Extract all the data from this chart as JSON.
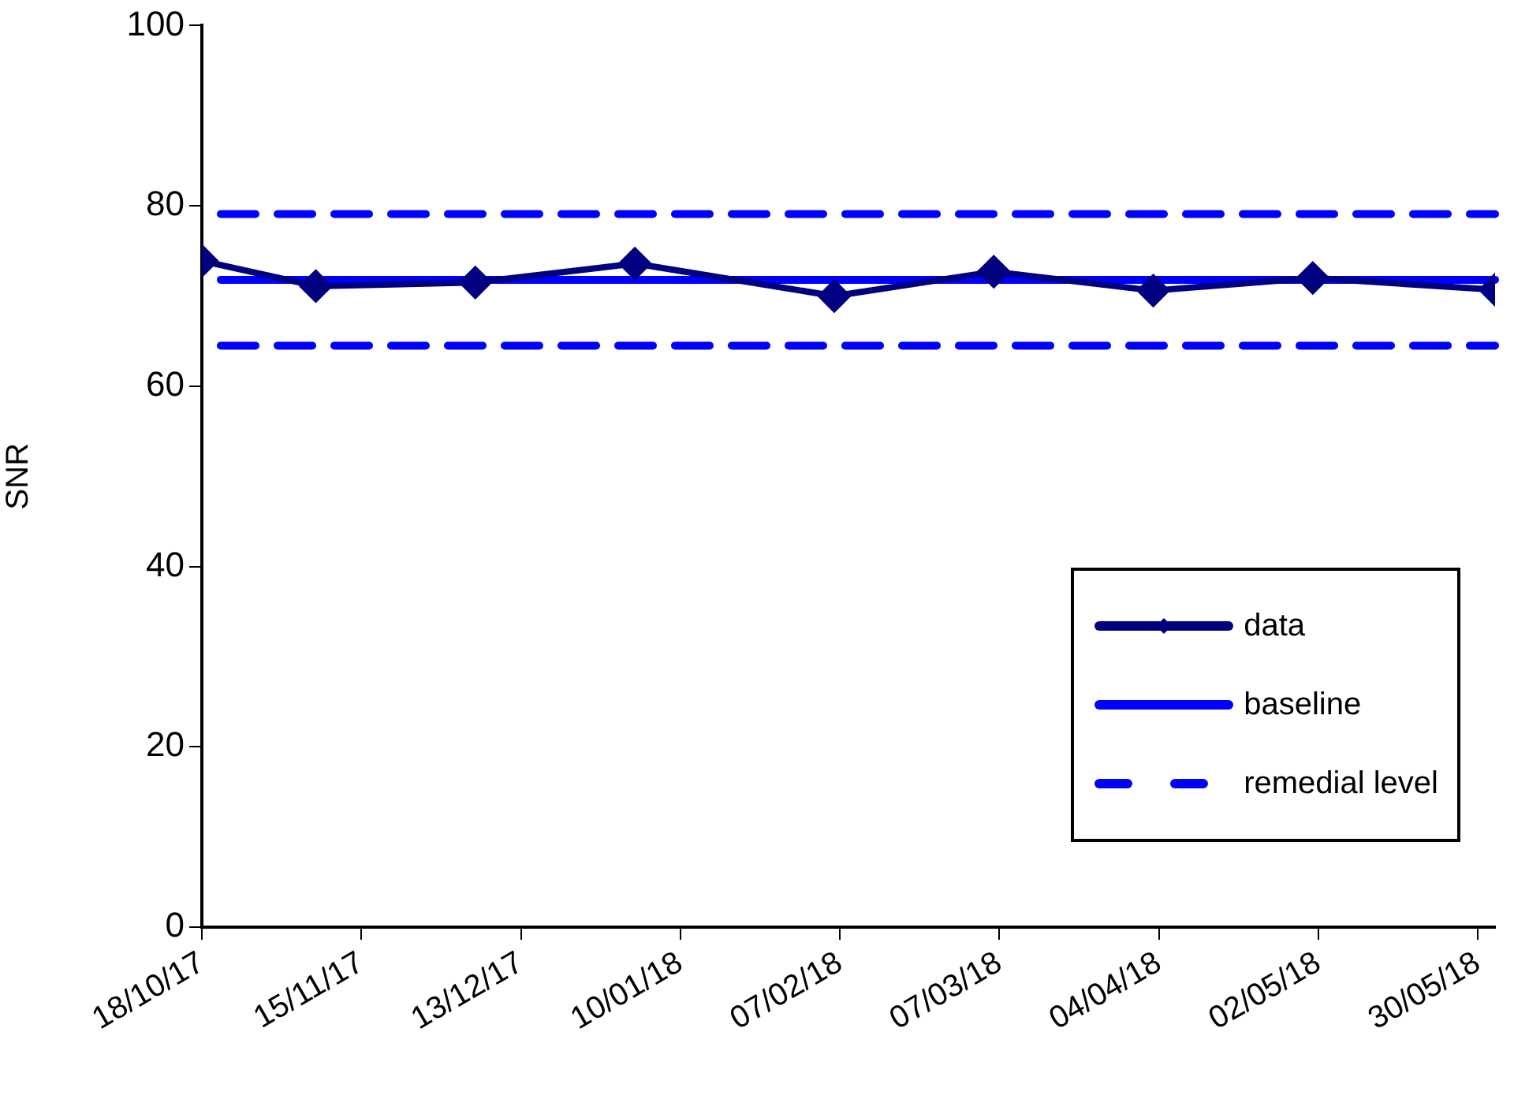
{
  "chart_data": {
    "type": "line",
    "ylabel": "SNR",
    "x": [
      "2017-10-18",
      "2017-11-07",
      "2017-12-05",
      "2018-01-02",
      "2018-02-06",
      "2018-03-06",
      "2018-04-03",
      "2018-05-01",
      "2018-06-02"
    ],
    "series": [
      {
        "name": "data",
        "color": "#000080",
        "values": [
          73.9,
          71.1,
          71.5,
          73.6,
          70.0,
          72.7,
          70.6,
          72.0,
          70.7
        ]
      }
    ],
    "marker": "diamond",
    "line_style": "solid",
    "xlim": [
      "2017-10-18",
      "2018-06-02"
    ],
    "xticks": [
      {
        "value": "2017-10-18",
        "label": "18/10/17"
      },
      {
        "value": "2017-11-15",
        "label": "15/11/17"
      },
      {
        "value": "2017-12-13",
        "label": "13/12/17"
      },
      {
        "value": "2018-01-10",
        "label": "10/01/18"
      },
      {
        "value": "2018-02-07",
        "label": "07/02/18"
      },
      {
        "value": "2018-03-07",
        "label": "07/03/18"
      },
      {
        "value": "2018-04-04",
        "label": "04/04/18"
      },
      {
        "value": "2018-05-02",
        "label": "02/05/18"
      },
      {
        "value": "2018-05-30",
        "label": "30/05/18"
      }
    ],
    "ylim": [
      0,
      100
    ],
    "yticks": [
      0,
      20,
      40,
      60,
      80,
      100
    ],
    "ref_lines": [
      {
        "axis": "y",
        "value": 71.8,
        "label": "baseline",
        "color": "#0000ff",
        "line_style": "solid"
      },
      {
        "axis": "y",
        "value": 79.1,
        "label": "remedial level",
        "color": "#0000ff",
        "line_style": "dashed"
      },
      {
        "axis": "y",
        "value": 64.5,
        "color": "#0000ff",
        "line_style": "dashed"
      }
    ],
    "grid": false,
    "legend": "right"
  }
}
